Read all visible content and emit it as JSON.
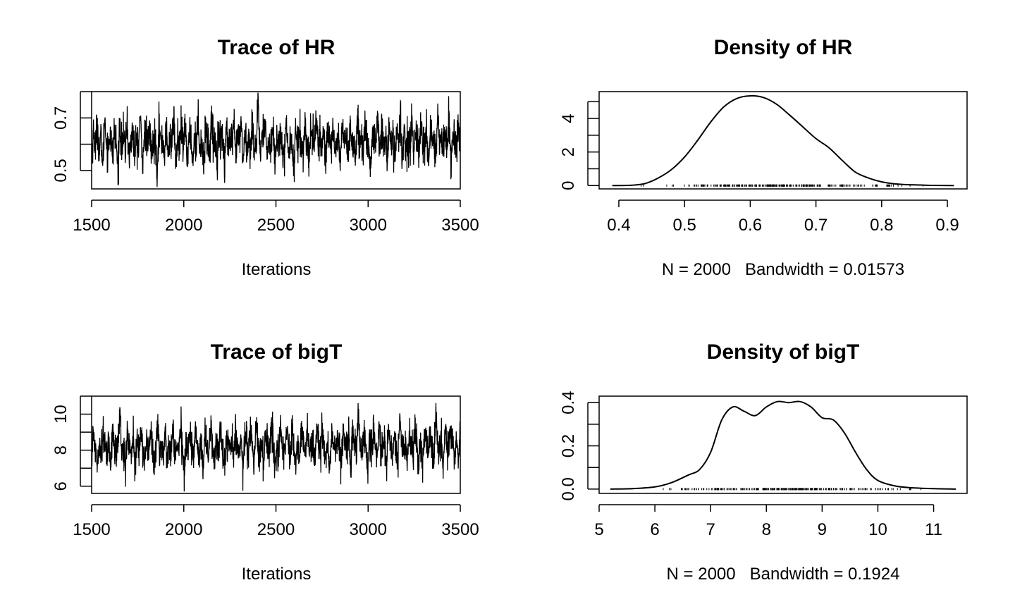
{
  "chart_data": [
    {
      "type": "line",
      "title": "Trace of HR",
      "xlabel": "Iterations",
      "ylabel": "",
      "xlim": [
        1500,
        3500
      ],
      "ylim": [
        0.43,
        0.8
      ],
      "xticks": [
        "1500",
        "2000",
        "2500",
        "3000",
        "3500"
      ],
      "yticks": [
        "0.5",
        "0.7"
      ],
      "ytick_minor": [
        0.5,
        0.6,
        0.7,
        0.8
      ],
      "series": [
        {
          "x_start": 1500,
          "x_end": 3500,
          "mean": 0.61,
          "sd": 0.065,
          "values": [
            0.52,
            0.66,
            0.58,
            0.71,
            0.55,
            0.63,
            0.49,
            0.74,
            0.6,
            0.57,
            0.68,
            0.53,
            0.65,
            0.62,
            0.47,
            0.7,
            0.59,
            0.64,
            0.56,
            0.72,
            0.51,
            0.61,
            0.67,
            0.54,
            0.63,
            0.58,
            0.75,
            0.5,
            0.62,
            0.66,
            0.57,
            0.69,
            0.53,
            0.6,
            0.64,
            0.46,
            0.71,
            0.59,
            0.62,
            0.55,
            0.68,
            0.52,
            0.65,
            0.61,
            0.73,
            0.48,
            0.63,
            0.58,
            0.67,
            0.56,
            0.7,
            0.54,
            0.6,
            0.66,
            0.51,
            0.64,
            0.59,
            0.72,
            0.57,
            0.62,
            0.49,
            0.69,
            0.61,
            0.55,
            0.74,
            0.58,
            0.63,
            0.52,
            0.67,
            0.6,
            0.65,
            0.47,
            0.71,
            0.56,
            0.62,
            0.59,
            0.68,
            0.53,
            0.64,
            0.61,
            0.7,
            0.5,
            0.66,
            0.58,
            0.63,
            0.55,
            0.72,
            0.57,
            0.6,
            0.79,
            0.52,
            0.65,
            0.62,
            0.68,
            0.54,
            0.61,
            0.59,
            0.73,
            0.48,
            0.64,
            0.57,
            0.66,
            0.6,
            0.56,
            0.7,
            0.53,
            0.63,
            0.62,
            0.45,
            0.69,
            0.58,
            0.65,
            0.61,
            0.55,
            0.71,
            0.59,
            0.52,
            0.67,
            0.63,
            0.6,
            0.74,
            0.56,
            0.62,
            0.58,
            0.68,
            0.51,
            0.64,
            0.66,
            0.57,
            0.7,
            0.54,
            0.61,
            0.63,
            0.49,
            0.72,
            0.59,
            0.65,
            0.55,
            0.67,
            0.6,
            0.62,
            0.53,
            0.69,
            0.58,
            0.64,
            0.56,
            0.71,
            0.61,
            0.57,
            0.46,
            0.66,
            0.63,
            0.59,
            0.73,
            0.52,
            0.68,
            0.6,
            0.62,
            0.55,
            0.7,
            0.58,
            0.65,
            0.54,
            0.63,
            0.61,
            0.75,
            0.5,
            0.67,
            0.57,
            0.64,
            0.59,
            0.69,
            0.56,
            0.62,
            0.66,
            0.53,
            0.72,
            0.6,
            0.58,
            0.65,
            0.51,
            0.68,
            0.63,
            0.61,
            0.55,
            0.74,
            0.59,
            0.62,
            0.57,
            0.66,
            0.6,
            0.7,
            0.52,
            0.64,
            0.62,
            0.56,
            0.71,
            0.58
          ]
        }
      ]
    },
    {
      "type": "line",
      "title": "Density of HR",
      "xlabel": "N = 2000   Bandwidth = 0.01573",
      "ylabel": "",
      "xlim": [
        0.37,
        0.93
      ],
      "ylim": [
        -0.2,
        5.6
      ],
      "xticks": [
        "0.4",
        "0.5",
        "0.6",
        "0.7",
        "0.8",
        "0.9"
      ],
      "yticks": [
        "0",
        "2",
        "4"
      ],
      "ytick_minor": [
        0,
        1,
        2,
        3,
        4,
        5
      ],
      "series": [
        {
          "x": [
            0.39,
            0.42,
            0.44,
            0.46,
            0.48,
            0.5,
            0.52,
            0.54,
            0.56,
            0.58,
            0.6,
            0.62,
            0.64,
            0.66,
            0.68,
            0.7,
            0.72,
            0.74,
            0.76,
            0.78,
            0.8,
            0.82,
            0.84,
            0.86,
            0.88,
            0.91
          ],
          "y": [
            0.0,
            0.02,
            0.12,
            0.45,
            0.95,
            1.7,
            2.7,
            3.8,
            4.7,
            5.2,
            5.35,
            5.25,
            4.85,
            4.2,
            3.5,
            2.8,
            2.25,
            1.5,
            0.8,
            0.45,
            0.22,
            0.1,
            0.05,
            0.03,
            0.01,
            0.0
          ]
        }
      ],
      "rug_range": [
        0.43,
        0.87
      ]
    },
    {
      "type": "line",
      "title": "Trace of bigT",
      "xlabel": "Iterations",
      "ylabel": "",
      "xlim": [
        1500,
        3500
      ],
      "ylim": [
        5.6,
        11.0
      ],
      "xticks": [
        "1500",
        "2000",
        "2500",
        "3000",
        "3500"
      ],
      "yticks": [
        "6",
        "8",
        "10"
      ],
      "ytick_minor": [
        6,
        7,
        8,
        9,
        10,
        11
      ],
      "series": [
        {
          "x_start": 1500,
          "x_end": 3500,
          "mean": 8.25,
          "sd": 0.85,
          "values": [
            7.2,
            9.1,
            8.0,
            6.9,
            8.8,
            7.6,
            9.4,
            8.3,
            7.1,
            8.9,
            6.6,
            9.6,
            8.2,
            7.5,
            8.7,
            10.7,
            7.3,
            8.5,
            6.8,
            9.2,
            8.1,
            7.7,
            9.0,
            6.5,
            8.4,
            7.9,
            9.5,
            8.0,
            7.0,
            8.8,
            7.4,
            9.3,
            8.6,
            6.7,
            8.2,
            9.7,
            7.5,
            8.3,
            7.8,
            9.1,
            6.9,
            8.5,
            8.0,
            10.1,
            7.2,
            8.7,
            7.6,
            9.4,
            8.1,
            6.2,
            8.9,
            7.9,
            9.0,
            8.4,
            7.1,
            9.8,
            8.2,
            7.4,
            8.6,
            6.8,
            9.3,
            8.0,
            7.7,
            9.5,
            8.3,
            7.0,
            8.8,
            7.5,
            9.9,
            8.1,
            6.4,
            8.7,
            7.8,
            9.2,
            8.4,
            7.3,
            9.6,
            8.0,
            7.6,
            8.9,
            6.6,
            9.4,
            8.2,
            7.9,
            9.1,
            8.5,
            7.2,
            10.2,
            8.1,
            7.4,
            8.8,
            6.9,
            9.3,
            8.3,
            7.7,
            9.0,
            8.6,
            6.1,
            8.4,
            7.5,
            9.7,
            8.0,
            7.8,
            9.2,
            8.7,
            7.1,
            9.5,
            8.2,
            6.5,
            8.9,
            7.6,
            9.1,
            8.4,
            7.3,
            10.0,
            8.1,
            7.9,
            8.6,
            6.7,
            9.4,
            8.3,
            7.4,
            9.8,
            8.0,
            7.2,
            8.8,
            6.0,
            9.2,
            8.5,
            7.7,
            9.0,
            8.2,
            7.0,
            9.6,
            8.4,
            7.5,
            8.7,
            6.3,
            9.3,
            8.1,
            7.8,
            10.4,
            8.6,
            7.3,
            9.1,
            8.0,
            6.8,
            8.9,
            7.6,
            9.5,
            8.3,
            7.1,
            9.7,
            8.2,
            7.9,
            8.8,
            6.6,
            9.4,
            8.5,
            7.4,
            9.0,
            8.1,
            7.2,
            10.6,
            8.4,
            7.7,
            8.7,
            6.9,
            9.2,
            8.0,
            7.5,
            9.8,
            8.3,
            7.0,
            8.9,
            6.4,
            9.3,
            8.6,
            7.8,
            9.1,
            8.2,
            7.3,
            10.3,
            8.5,
            7.6,
            8.8,
            6.7,
            9.6,
            8.1,
            7.9,
            9.4,
            8.4,
            7.2,
            8.6,
            7.0,
            9.5
          ]
        }
      ]
    },
    {
      "type": "line",
      "title": "Density of bigT",
      "xlabel": "N = 2000   Bandwidth = 0.1924",
      "ylabel": "",
      "xlim": [
        5.0,
        11.6
      ],
      "ylim": [
        -0.02,
        0.43
      ],
      "xticks": [
        "5",
        "6",
        "7",
        "8",
        "9",
        "10",
        "11"
      ],
      "yticks": [
        "0.0",
        "0.2",
        "0.4"
      ],
      "ytick_minor": [
        0.0,
        0.1,
        0.2,
        0.3,
        0.4
      ],
      "series": [
        {
          "x": [
            5.2,
            5.6,
            6.0,
            6.3,
            6.6,
            6.8,
            7.0,
            7.2,
            7.4,
            7.6,
            7.8,
            8.0,
            8.2,
            8.4,
            8.6,
            8.8,
            9.0,
            9.2,
            9.4,
            9.6,
            9.8,
            10.0,
            10.3,
            10.6,
            11.0,
            11.4
          ],
          "y": [
            0.0,
            0.002,
            0.01,
            0.03,
            0.065,
            0.09,
            0.17,
            0.32,
            0.38,
            0.36,
            0.34,
            0.38,
            0.405,
            0.4,
            0.405,
            0.38,
            0.33,
            0.32,
            0.26,
            0.17,
            0.09,
            0.04,
            0.015,
            0.006,
            0.002,
            0.0
          ]
        }
      ],
      "rug_range": [
        6.0,
        10.9
      ]
    }
  ]
}
